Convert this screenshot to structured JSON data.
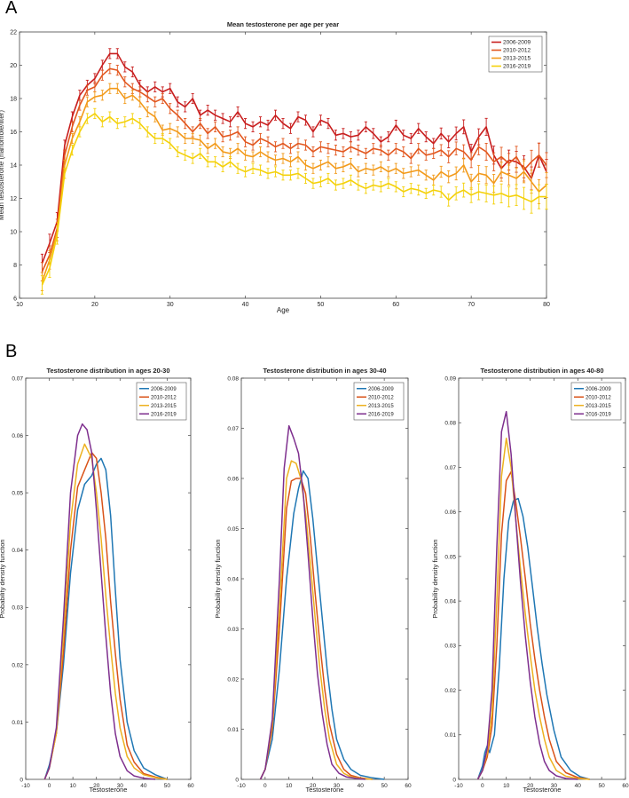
{
  "panels": {
    "a": "A",
    "b": "B"
  },
  "colors": {
    "s2006": "#c81e1e",
    "s2010": "#e2571f",
    "s2013": "#f29a1a",
    "s2016": "#f4d10a",
    "d2008": "#1f77b4",
    "d2010": "#d95319",
    "d2013": "#edb120",
    "d2016": "#7e2f8e"
  },
  "chart_data": [
    {
      "type": "line",
      "title": "Mean testosterone per age per year",
      "xlabel": "Age",
      "ylabel": "Mean testosterone (nanomole/liter)",
      "xlim": [
        10,
        80
      ],
      "ylim": [
        6,
        22
      ],
      "xticks": [
        10,
        20,
        30,
        40,
        50,
        60,
        70,
        80
      ],
      "yticks": [
        6,
        8,
        10,
        12,
        14,
        16,
        18,
        20,
        22
      ],
      "legend_position": "top-right",
      "error_bars": true,
      "x": [
        13,
        14,
        15,
        16,
        17,
        18,
        19,
        20,
        21,
        22,
        23,
        24,
        25,
        26,
        27,
        28,
        29,
        30,
        31,
        32,
        33,
        34,
        35,
        36,
        37,
        38,
        39,
        40,
        41,
        42,
        43,
        44,
        45,
        46,
        47,
        48,
        49,
        50,
        51,
        52,
        53,
        54,
        55,
        56,
        57,
        58,
        59,
        60,
        61,
        62,
        63,
        64,
        65,
        66,
        67,
        68,
        69,
        70,
        71,
        72,
        73,
        74,
        75,
        76,
        77,
        78,
        79,
        80
      ],
      "series": [
        {
          "name": "2006-2009",
          "values": [
            8.1,
            9.3,
            10.6,
            15.2,
            16.9,
            18.2,
            18.8,
            19.2,
            20.0,
            20.7,
            20.7,
            19.9,
            19.6,
            18.8,
            18.4,
            18.7,
            18.4,
            18.6,
            17.8,
            17.5,
            18.0,
            17.0,
            17.3,
            17.0,
            16.8,
            16.6,
            17.2,
            16.5,
            16.3,
            16.6,
            16.4,
            17.0,
            16.5,
            16.2,
            16.9,
            16.7,
            16.0,
            16.7,
            16.5,
            15.8,
            15.9,
            15.7,
            15.8,
            16.3,
            15.9,
            15.4,
            15.7,
            16.4,
            15.8,
            15.6,
            16.2,
            15.7,
            15.3,
            15.9,
            15.4,
            15.9,
            16.3,
            14.8,
            15.7,
            16.3,
            14.6,
            13.8,
            14.3,
            14.2,
            13.9,
            13.2,
            14.6,
            13.6
          ]
        },
        {
          "name": "2010-2012",
          "values": [
            7.6,
            8.6,
            10.2,
            14.6,
            16.3,
            17.6,
            18.5,
            18.7,
            19.4,
            19.8,
            19.7,
            19.0,
            18.6,
            18.4,
            18.1,
            17.8,
            18.0,
            17.4,
            17.0,
            16.5,
            16.0,
            16.5,
            15.9,
            16.3,
            15.7,
            15.8,
            16.0,
            15.4,
            15.2,
            15.6,
            15.4,
            15.1,
            15.3,
            15.0,
            15.3,
            15.2,
            14.8,
            15.1,
            15.0,
            14.9,
            14.8,
            15.1,
            14.9,
            14.7,
            15.0,
            14.9,
            14.6,
            15.0,
            14.8,
            14.4,
            15.0,
            14.6,
            14.7,
            14.9,
            14.5,
            15.0,
            14.8,
            14.3,
            15.1,
            14.8,
            14.2,
            14.5,
            14.1,
            14.5,
            13.7,
            14.2,
            14.6,
            14.0
          ]
        },
        {
          "name": "2013-2015",
          "values": [
            7.0,
            8.3,
            10.0,
            14.0,
            15.6,
            16.6,
            17.8,
            18.1,
            18.2,
            18.6,
            18.6,
            18.0,
            18.2,
            17.8,
            17.2,
            16.9,
            16.1,
            16.2,
            16.0,
            15.6,
            15.6,
            15.5,
            15.0,
            15.3,
            14.8,
            14.7,
            15.0,
            14.6,
            14.5,
            14.8,
            14.5,
            14.3,
            14.4,
            14.2,
            14.5,
            14.0,
            13.8,
            14.0,
            14.2,
            13.8,
            13.9,
            14.1,
            13.6,
            13.8,
            13.7,
            13.9,
            13.6,
            13.8,
            13.5,
            13.6,
            13.7,
            13.4,
            13.1,
            13.6,
            13.3,
            13.5,
            14.0,
            13.0,
            13.5,
            13.4,
            12.9,
            13.6,
            13.4,
            13.2,
            13.6,
            13.0,
            12.4,
            12.8
          ]
        },
        {
          "name": "2016-2019",
          "values": [
            6.8,
            7.8,
            9.8,
            13.5,
            14.9,
            16.0,
            16.8,
            17.1,
            16.6,
            16.9,
            16.5,
            16.6,
            16.8,
            16.5,
            16.0,
            15.6,
            15.6,
            15.3,
            14.8,
            14.6,
            14.4,
            14.7,
            14.2,
            14.2,
            13.9,
            14.2,
            13.8,
            13.6,
            13.8,
            13.7,
            13.5,
            13.6,
            13.4,
            13.4,
            13.5,
            13.2,
            12.9,
            13.0,
            13.2,
            12.8,
            12.9,
            13.1,
            12.8,
            12.6,
            12.8,
            12.7,
            12.9,
            12.7,
            12.4,
            12.6,
            12.5,
            12.3,
            12.5,
            12.4,
            11.9,
            12.3,
            12.5,
            12.2,
            12.4,
            12.3,
            12.2,
            12.3,
            12.1,
            12.2,
            12.0,
            11.8,
            12.1,
            12.1
          ]
        }
      ]
    },
    {
      "type": "line",
      "title": "Testosterone distribution in ages 20-30",
      "xlabel": "Testosterone",
      "ylabel": "Probability density function",
      "xlim": [
        -10,
        60
      ],
      "ylim": [
        0,
        0.07
      ],
      "xticks": [
        -10,
        0,
        10,
        20,
        30,
        40,
        50,
        60
      ],
      "yticks": [
        0,
        0.01,
        0.02,
        0.03,
        0.04,
        0.05,
        0.06,
        0.07
      ],
      "legend_position": "top-right",
      "series": [
        {
          "name": "2006-2009",
          "x": [
            -2,
            0,
            3,
            6,
            9,
            12,
            15,
            18,
            20,
            22,
            24,
            26,
            28,
            30,
            33,
            36,
            40,
            45,
            50
          ],
          "values": [
            0,
            0.0025,
            0.008,
            0.02,
            0.036,
            0.047,
            0.0515,
            0.053,
            0.055,
            0.056,
            0.054,
            0.046,
            0.033,
            0.021,
            0.01,
            0.005,
            0.002,
            0.0008,
            0
          ]
        },
        {
          "name": "2010-2012",
          "x": [
            -2,
            0,
            3,
            6,
            9,
            12,
            15,
            18,
            20,
            22,
            24,
            26,
            28,
            30,
            33,
            36,
            40,
            45,
            50
          ],
          "values": [
            0,
            0.002,
            0.008,
            0.022,
            0.04,
            0.051,
            0.054,
            0.057,
            0.056,
            0.05,
            0.042,
            0.031,
            0.022,
            0.014,
            0.006,
            0.003,
            0.001,
            0.0004,
            0
          ]
        },
        {
          "name": "2013-2015",
          "x": [
            -2,
            0,
            3,
            6,
            9,
            12,
            15,
            18,
            20,
            22,
            24,
            26,
            28,
            30,
            33,
            36,
            40,
            45,
            50
          ],
          "values": [
            0,
            0.002,
            0.008,
            0.025,
            0.045,
            0.055,
            0.0585,
            0.056,
            0.05,
            0.042,
            0.032,
            0.023,
            0.015,
            0.009,
            0.004,
            0.002,
            0.0008,
            0.0003,
            0
          ]
        },
        {
          "name": "2016-2019",
          "x": [
            -2,
            0,
            3,
            6,
            9,
            12,
            14,
            16,
            18,
            20,
            22,
            24,
            26,
            28,
            30,
            33,
            36,
            40,
            45
          ],
          "values": [
            0,
            0.002,
            0.009,
            0.028,
            0.05,
            0.06,
            0.062,
            0.061,
            0.057,
            0.047,
            0.036,
            0.025,
            0.015,
            0.008,
            0.004,
            0.0015,
            0.0006,
            0.0002,
            0
          ]
        }
      ]
    },
    {
      "type": "line",
      "title": "Testosterone distribution in ages 30-40",
      "xlabel": "Testosterone",
      "ylabel": "Probability density function",
      "xlim": [
        -10,
        60
      ],
      "ylim": [
        0,
        0.08
      ],
      "xticks": [
        -10,
        0,
        10,
        20,
        30,
        40,
        50,
        60
      ],
      "yticks": [
        0,
        0.01,
        0.02,
        0.03,
        0.04,
        0.05,
        0.06,
        0.07,
        0.08
      ],
      "legend_position": "top-right",
      "series": [
        {
          "name": "2006-2009",
          "x": [
            -2,
            0,
            3,
            6,
            9,
            12,
            14,
            16,
            18,
            20,
            22,
            24,
            26,
            28,
            30,
            33,
            36,
            40,
            45,
            50
          ],
          "values": [
            0,
            0.002,
            0.008,
            0.022,
            0.04,
            0.053,
            0.058,
            0.0615,
            0.06,
            0.052,
            0.042,
            0.032,
            0.022,
            0.014,
            0.008,
            0.004,
            0.002,
            0.0008,
            0.0003,
            0
          ]
        },
        {
          "name": "2010-2012",
          "x": [
            -2,
            0,
            3,
            6,
            9,
            11,
            13,
            15,
            17,
            19,
            21,
            23,
            25,
            27,
            30,
            33,
            36,
            40,
            45
          ],
          "values": [
            0,
            0.002,
            0.01,
            0.03,
            0.054,
            0.0595,
            0.06,
            0.06,
            0.057,
            0.048,
            0.037,
            0.027,
            0.018,
            0.011,
            0.005,
            0.002,
            0.0008,
            0.0003,
            0
          ]
        },
        {
          "name": "2013-2015",
          "x": [
            -2,
            0,
            3,
            6,
            9,
            11,
            13,
            15,
            17,
            19,
            21,
            23,
            25,
            27,
            30,
            33,
            36,
            40,
            45
          ],
          "values": [
            0,
            0.002,
            0.011,
            0.034,
            0.06,
            0.0635,
            0.063,
            0.06,
            0.053,
            0.043,
            0.032,
            0.022,
            0.014,
            0.008,
            0.003,
            0.0012,
            0.0005,
            0.0002,
            0
          ]
        },
        {
          "name": "2016-2019",
          "x": [
            -2,
            0,
            3,
            6,
            8,
            10,
            12,
            14,
            16,
            18,
            20,
            22,
            24,
            26,
            28,
            31,
            34,
            38,
            42
          ],
          "values": [
            0,
            0.002,
            0.012,
            0.04,
            0.062,
            0.0705,
            0.068,
            0.065,
            0.057,
            0.045,
            0.032,
            0.021,
            0.013,
            0.007,
            0.003,
            0.0012,
            0.0005,
            0.0002,
            0
          ]
        }
      ]
    },
    {
      "type": "line",
      "title": "Testosterone distribution in ages 40-80",
      "xlabel": "Testosterone",
      "ylabel": "Probability density function",
      "xlim": [
        -10,
        60
      ],
      "ylim": [
        0,
        0.09
      ],
      "xticks": [
        -10,
        0,
        10,
        20,
        30,
        40,
        50,
        60
      ],
      "yticks": [
        0,
        0.01,
        0.02,
        0.03,
        0.04,
        0.05,
        0.06,
        0.07,
        0.08,
        0.09
      ],
      "legend_position": "top-right",
      "series": [
        {
          "name": "2006-2009",
          "x": [
            -2,
            0,
            1,
            2,
            3,
            5,
            7,
            9,
            11,
            13,
            15,
            17,
            19,
            21,
            23,
            25,
            27,
            30,
            33,
            37,
            41,
            45
          ],
          "values": [
            0,
            0.003,
            0.006,
            0.0075,
            0.006,
            0.01,
            0.025,
            0.045,
            0.058,
            0.0625,
            0.063,
            0.059,
            0.052,
            0.043,
            0.034,
            0.026,
            0.019,
            0.011,
            0.005,
            0.002,
            0.0006,
            0
          ]
        },
        {
          "name": "2010-2012",
          "x": [
            -2,
            0,
            2,
            4,
            6,
            8,
            10,
            12,
            14,
            16,
            18,
            20,
            22,
            24,
            26,
            28,
            31,
            35,
            40,
            45
          ],
          "values": [
            0,
            0.002,
            0.005,
            0.012,
            0.03,
            0.055,
            0.067,
            0.069,
            0.062,
            0.054,
            0.045,
            0.035,
            0.027,
            0.02,
            0.014,
            0.009,
            0.004,
            0.0015,
            0.0004,
            0
          ]
        },
        {
          "name": "2013-2015",
          "x": [
            -2,
            0,
            2,
            4,
            6,
            8,
            10,
            12,
            14,
            16,
            18,
            20,
            22,
            24,
            26,
            28,
            31,
            35,
            40,
            45
          ],
          "values": [
            0,
            0.002,
            0.006,
            0.015,
            0.04,
            0.068,
            0.0765,
            0.07,
            0.058,
            0.047,
            0.037,
            0.028,
            0.02,
            0.014,
            0.009,
            0.005,
            0.002,
            0.0007,
            0.0002,
            0
          ]
        },
        {
          "name": "2016-2019",
          "x": [
            -2,
            0,
            2,
            4,
            6,
            8,
            10,
            12,
            14,
            16,
            18,
            20,
            22,
            24,
            26,
            28,
            31,
            35,
            40
          ],
          "values": [
            0,
            0.002,
            0.007,
            0.02,
            0.052,
            0.078,
            0.0825,
            0.073,
            0.058,
            0.044,
            0.032,
            0.022,
            0.014,
            0.008,
            0.004,
            0.002,
            0.0008,
            0.0002,
            0
          ]
        }
      ]
    }
  ]
}
